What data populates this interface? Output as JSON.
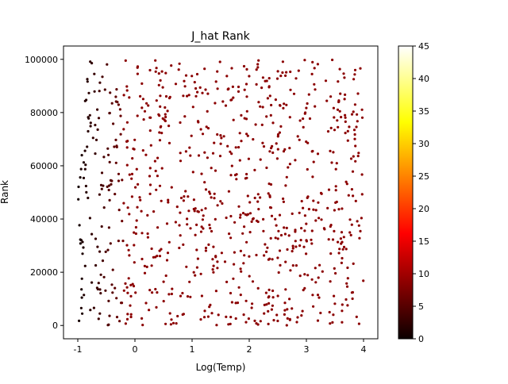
{
  "chart_data": {
    "type": "scatter",
    "title": "J_hat Rank",
    "xlabel": "Log(Temp)",
    "ylabel": "Rank",
    "xlim": [
      -1.25,
      4.25
    ],
    "ylim": [
      -5000,
      105000
    ],
    "xticks": [
      -1,
      0,
      1,
      2,
      3,
      4
    ],
    "yticks": [
      0,
      20000,
      40000,
      60000,
      80000,
      100000
    ],
    "grid": false,
    "colormap": "hot",
    "colorbar": {
      "min": 0,
      "max": 45,
      "ticks": [
        0,
        5,
        10,
        15,
        20,
        25,
        30,
        35,
        40,
        45
      ]
    },
    "point_color_value": 9,
    "marker_color": "#8b0000",
    "n_points": 900,
    "x_range": [
      -1.0,
      4.0
    ],
    "y_range": [
      0,
      100000
    ],
    "low_temp_dark_below": -0.2
  },
  "colors": {
    "cmap_stops": [
      "#0b0000",
      "#ff0000",
      "#ffff00",
      "#ffffff"
    ]
  }
}
